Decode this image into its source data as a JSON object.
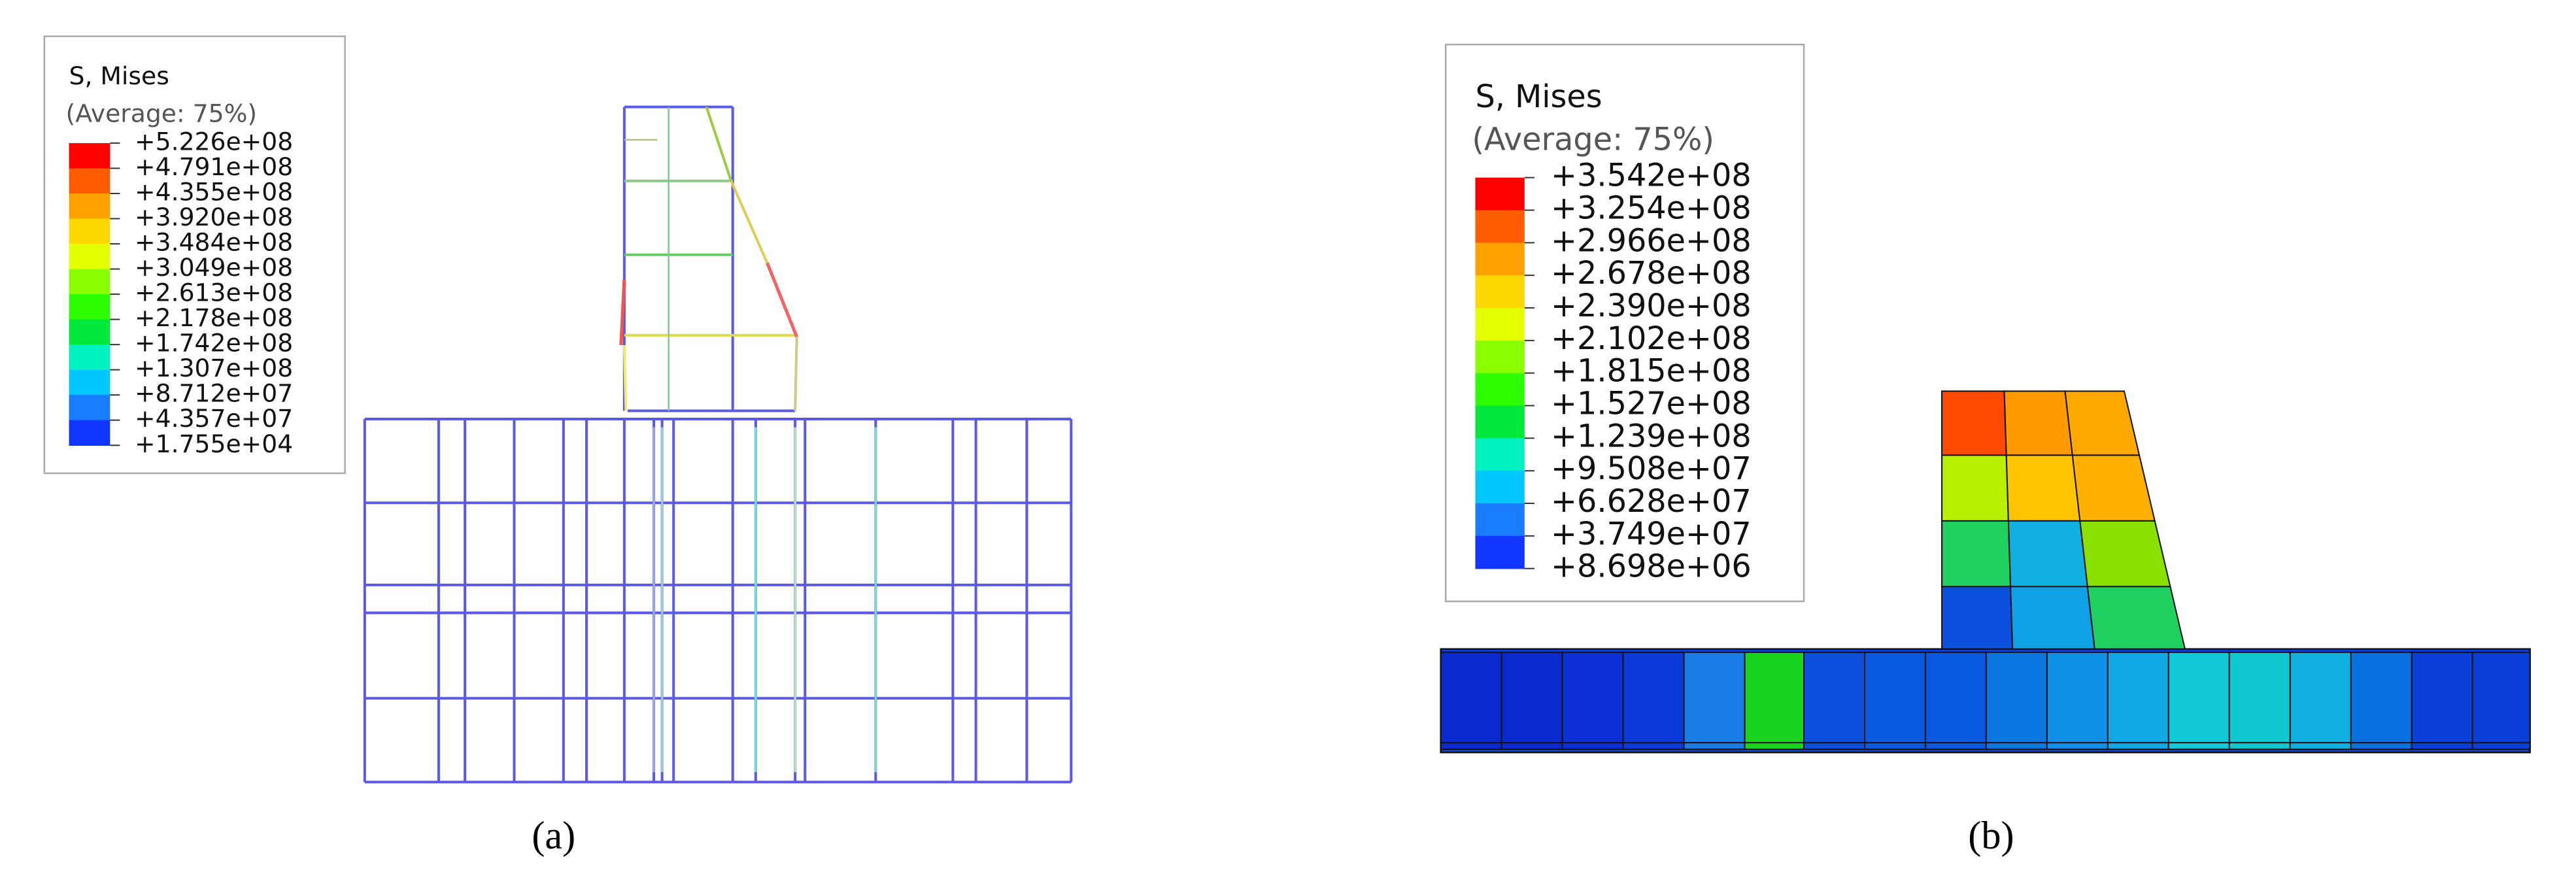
{
  "panels": [
    {
      "legend": {
        "title": "S, Mises",
        "subtitle": "(Average: 75%)",
        "labels": [
          "+5.226e+08",
          "+4.791e+08",
          "+4.355e+08",
          "+3.920e+08",
          "+3.484e+08",
          "+3.049e+08",
          "+2.613e+08",
          "+2.178e+08",
          "+1.742e+08",
          "+1.307e+08",
          "+8.712e+07",
          "+4.357e+07",
          "+1.755e+04"
        ],
        "colors": [
          "#ff0000",
          "#ff5d00",
          "#ffa200",
          "#ffd800",
          "#e3ff00",
          "#8aff00",
          "#2eff00",
          "#00e83a",
          "#00f2c0",
          "#00c8ff",
          "#1a7cff",
          "#1036ff"
        ]
      },
      "caption": "(a)"
    },
    {
      "legend": {
        "title": "S, Mises",
        "subtitle": "(Average: 75%)",
        "labels": [
          "+3.542e+08",
          "+3.254e+08",
          "+2.966e+08",
          "+2.678e+08",
          "+2.390e+08",
          "+2.102e+08",
          "+1.815e+08",
          "+1.527e+08",
          "+1.239e+08",
          "+9.508e+07",
          "+6.628e+07",
          "+3.749e+07",
          "+8.698e+06"
        ],
        "colors": [
          "#ff0000",
          "#ff5d00",
          "#ffa200",
          "#ffd800",
          "#e3ff00",
          "#8aff00",
          "#2eff00",
          "#00e83a",
          "#00f2c0",
          "#00c8ff",
          "#1a7cff",
          "#1036ff"
        ]
      },
      "caption": "(b)"
    }
  ]
}
